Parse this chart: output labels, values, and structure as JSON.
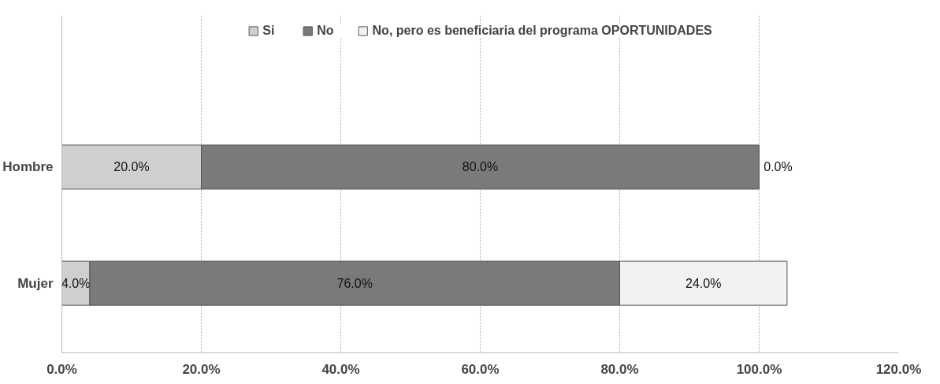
{
  "chart_data": {
    "type": "bar",
    "orientation": "horizontal",
    "stacked": true,
    "categories": [
      "Hombre",
      "Mujer"
    ],
    "series": [
      {
        "name": "Si",
        "color": "#cfcfcf",
        "values": [
          20,
          4
        ],
        "value_labels": [
          "20.0%",
          "4.0%"
        ]
      },
      {
        "name": "No",
        "color": "#7a7a7a",
        "values": [
          80,
          76
        ],
        "value_labels": [
          "80.0%",
          "76.0%"
        ]
      },
      {
        "name": "No, pero es beneficiaria del programa OPORTUNIDADES",
        "color": "#f2f2f2",
        "values": [
          0,
          24
        ],
        "value_labels": [
          "0.0%",
          "24.0%"
        ]
      }
    ],
    "xlim": [
      0,
      120
    ],
    "xticks": [
      {
        "value": 0,
        "label": "0.0%"
      },
      {
        "value": 20,
        "label": "20.0%"
      },
      {
        "value": 40,
        "label": "40.0%"
      },
      {
        "value": 60,
        "label": "60.0%"
      },
      {
        "value": 80,
        "label": "80.0%"
      },
      {
        "value": 100,
        "label": "100.0%"
      },
      {
        "value": 120,
        "label": "120.0%"
      }
    ],
    "grid": "x",
    "legend": "top"
  }
}
